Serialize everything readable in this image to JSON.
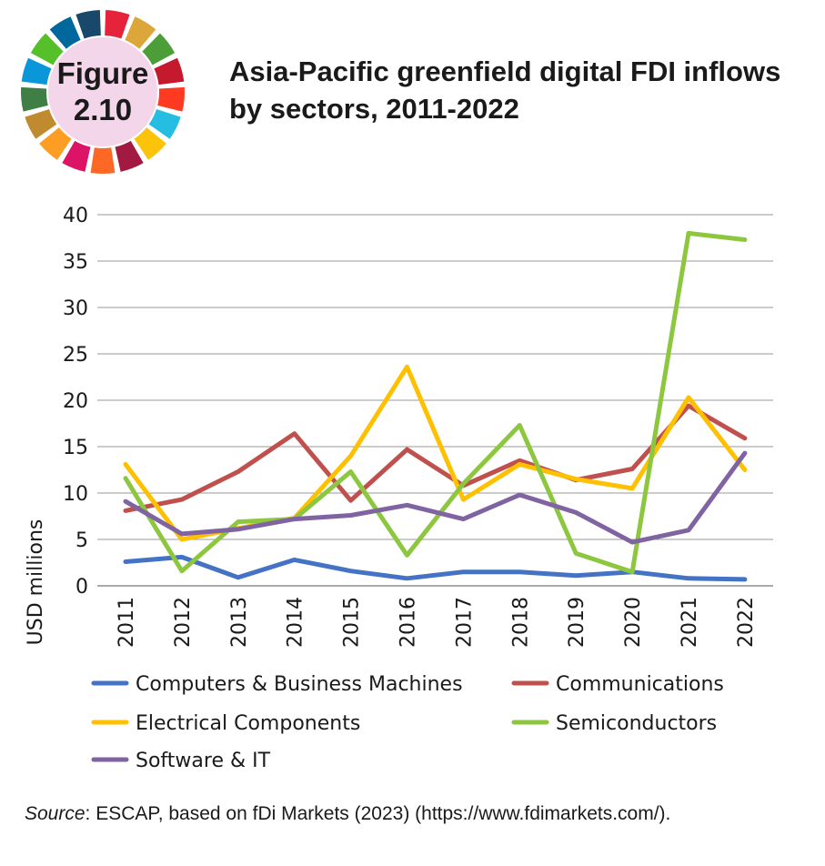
{
  "figure": {
    "label": "Figure",
    "number": "2.10"
  },
  "badge_colors": [
    "#e5243b",
    "#dda63a",
    "#4c9f38",
    "#c5192d",
    "#ff3a21",
    "#26bde2",
    "#fcc30b",
    "#a21942",
    "#fd6925",
    "#dd1367",
    "#fd9d24",
    "#bf8b2e",
    "#3f7e44",
    "#0a97d9",
    "#56c02b",
    "#00689d",
    "#19486a"
  ],
  "title": "Asia-Pacific greenfield digital FDI inflows by sectors, 2011-2022",
  "chart_data": {
    "type": "line",
    "title": "Asia-Pacific greenfield digital FDI inflows by sectors, 2011-2022",
    "xlabel": "",
    "ylabel": "USD millions",
    "ylim": [
      0,
      40
    ],
    "yticks": [
      0,
      5,
      10,
      15,
      20,
      25,
      30,
      35,
      40
    ],
    "grid": true,
    "categories": [
      "2011",
      "2012",
      "2013",
      "2014",
      "2015",
      "2016",
      "2017",
      "2018",
      "2019",
      "2020",
      "2021",
      "2022"
    ],
    "series": [
      {
        "name": "Computers & Business Machines",
        "color": "#4472c4",
        "values": [
          2.6,
          3.1,
          0.9,
          2.8,
          1.6,
          0.8,
          1.5,
          1.5,
          1.1,
          1.5,
          0.8,
          0.7
        ]
      },
      {
        "name": "Communications",
        "color": "#c0504d",
        "values": [
          8.1,
          9.3,
          12.3,
          16.4,
          9.2,
          14.7,
          10.8,
          13.5,
          11.4,
          12.6,
          19.4,
          15.9
        ]
      },
      {
        "name": "Electrical Components",
        "color": "#ffc000",
        "values": [
          13.1,
          5.0,
          6.2,
          7.3,
          14.0,
          23.6,
          9.3,
          13.1,
          11.5,
          10.5,
          20.3,
          12.5
        ]
      },
      {
        "name": "Semiconductors",
        "color": "#8dc63f",
        "values": [
          11.6,
          1.6,
          6.9,
          7.2,
          12.3,
          3.3,
          11.0,
          17.3,
          3.5,
          1.5,
          38.0,
          37.3
        ]
      },
      {
        "name": "Software & IT",
        "color": "#8064a2",
        "values": [
          9.1,
          5.6,
          6.1,
          7.2,
          7.6,
          8.7,
          7.2,
          9.8,
          7.9,
          4.7,
          6.0,
          14.3
        ]
      }
    ],
    "legend": {
      "position": "bottom",
      "columns": 2
    }
  },
  "source": {
    "label": "Source",
    "text": ": ESCAP, based on fDi Markets (2023) (https://www.fdimarkets.com/)."
  }
}
